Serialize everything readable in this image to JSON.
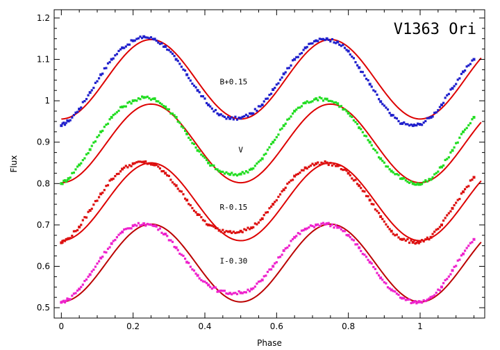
{
  "chart_data": {
    "type": "scatter",
    "title": "V1363 Ori",
    "xlabel": "Phase",
    "ylabel": "Flux",
    "xlim": [
      -0.02,
      1.18
    ],
    "ylim": [
      0.475,
      1.22
    ],
    "xticks": [
      "0",
      "0.2",
      "0.4",
      "0.6",
      "0.8",
      "1"
    ],
    "yticks": [
      "0.5",
      "0.6",
      "0.7",
      "0.8",
      "0.9",
      "1",
      "1.1",
      "1.2"
    ],
    "grid": false,
    "legend": "none",
    "series": [
      {
        "name": "B+0.15",
        "color": "#2020cc",
        "model_color": "#dd0000",
        "label_at": [
          0.48,
          1.04
        ],
        "model": {
          "mean": 1.052,
          "amplitude": 0.096,
          "depth_primary": 0.0,
          "depth_secondary": 0.0
        },
        "points_x": [
          0.0,
          0.02,
          0.05,
          0.08,
          0.11,
          0.14,
          0.17,
          0.2,
          0.23,
          0.26,
          0.29,
          0.32,
          0.35,
          0.38,
          0.41,
          0.44,
          0.47,
          0.5,
          0.53,
          0.56,
          0.59,
          0.62,
          0.65,
          0.68,
          0.71,
          0.74,
          0.77,
          0.8,
          0.83,
          0.86,
          0.89,
          0.92,
          0.95,
          0.98,
          1.0,
          1.03,
          1.06,
          1.09,
          1.12,
          1.15
        ],
        "points_y": [
          0.94,
          0.951,
          0.98,
          1.02,
          1.063,
          1.1,
          1.128,
          1.145,
          1.155,
          1.149,
          1.131,
          1.1,
          1.063,
          1.025,
          0.99,
          0.966,
          0.957,
          0.958,
          0.969,
          0.99,
          1.027,
          1.065,
          1.1,
          1.128,
          1.145,
          1.15,
          1.142,
          1.12,
          1.08,
          1.04,
          0.998,
          0.965,
          0.945,
          0.94,
          0.943,
          0.96,
          0.99,
          1.03,
          1.07,
          1.1
        ]
      },
      {
        "name": "V",
        "color": "#22dd22",
        "model_color": "#dd0000",
        "label_at": [
          0.5,
          0.875
        ],
        "model": {
          "mean": 0.897,
          "amplitude": 0.095
        },
        "points_x": [
          0.0,
          0.02,
          0.05,
          0.08,
          0.11,
          0.14,
          0.17,
          0.2,
          0.23,
          0.26,
          0.29,
          0.32,
          0.35,
          0.38,
          0.41,
          0.44,
          0.47,
          0.5,
          0.53,
          0.56,
          0.59,
          0.62,
          0.65,
          0.68,
          0.71,
          0.74,
          0.77,
          0.8,
          0.83,
          0.86,
          0.89,
          0.92,
          0.95,
          0.98,
          1.0,
          1.03,
          1.06,
          1.09,
          1.12,
          1.15
        ],
        "points_y": [
          0.8,
          0.812,
          0.845,
          0.882,
          0.925,
          0.96,
          0.985,
          1.0,
          1.008,
          1.005,
          0.985,
          0.96,
          0.92,
          0.88,
          0.85,
          0.83,
          0.822,
          0.823,
          0.835,
          0.86,
          0.9,
          0.94,
          0.975,
          0.995,
          1.005,
          1.004,
          0.993,
          0.97,
          0.935,
          0.9,
          0.86,
          0.83,
          0.812,
          0.8,
          0.798,
          0.81,
          0.84,
          0.88,
          0.925,
          0.96
        ]
      },
      {
        "name": "R-0.15",
        "color": "#dd1111",
        "model_color": "#dd0000",
        "label_at": [
          0.48,
          0.737
        ],
        "model": {
          "mean": 0.756,
          "amplitude": 0.094
        },
        "points_x": [
          0.0,
          0.02,
          0.05,
          0.08,
          0.11,
          0.14,
          0.17,
          0.2,
          0.23,
          0.26,
          0.29,
          0.32,
          0.35,
          0.38,
          0.41,
          0.44,
          0.47,
          0.5,
          0.53,
          0.56,
          0.59,
          0.62,
          0.65,
          0.68,
          0.71,
          0.74,
          0.77,
          0.8,
          0.83,
          0.86,
          0.89,
          0.92,
          0.95,
          0.98,
          1.0,
          1.03,
          1.06,
          1.09,
          1.12,
          1.15
        ],
        "points_y": [
          0.657,
          0.667,
          0.695,
          0.735,
          0.775,
          0.81,
          0.835,
          0.848,
          0.852,
          0.845,
          0.825,
          0.795,
          0.76,
          0.725,
          0.7,
          0.687,
          0.684,
          0.685,
          0.693,
          0.715,
          0.75,
          0.785,
          0.818,
          0.838,
          0.848,
          0.85,
          0.843,
          0.825,
          0.795,
          0.76,
          0.72,
          0.685,
          0.665,
          0.658,
          0.66,
          0.67,
          0.7,
          0.74,
          0.78,
          0.815
        ]
      },
      {
        "name": "I-0.30",
        "color": "#ee22cc",
        "model_color": "#bb0000",
        "label_at": [
          0.48,
          0.607
        ],
        "model": {
          "mean": 0.608,
          "amplitude": 0.094
        },
        "points_x": [
          0.0,
          0.02,
          0.05,
          0.08,
          0.11,
          0.14,
          0.17,
          0.2,
          0.23,
          0.26,
          0.29,
          0.32,
          0.35,
          0.38,
          0.41,
          0.44,
          0.47,
          0.5,
          0.53,
          0.56,
          0.59,
          0.62,
          0.65,
          0.68,
          0.71,
          0.74,
          0.77,
          0.8,
          0.83,
          0.86,
          0.89,
          0.92,
          0.95,
          0.98,
          1.0,
          1.03,
          1.06,
          1.09,
          1.12,
          1.15
        ],
        "points_y": [
          0.513,
          0.52,
          0.545,
          0.58,
          0.62,
          0.655,
          0.683,
          0.698,
          0.703,
          0.698,
          0.678,
          0.645,
          0.61,
          0.578,
          0.555,
          0.54,
          0.535,
          0.536,
          0.545,
          0.567,
          0.6,
          0.638,
          0.67,
          0.69,
          0.7,
          0.703,
          0.694,
          0.675,
          0.645,
          0.61,
          0.572,
          0.543,
          0.523,
          0.513,
          0.514,
          0.525,
          0.55,
          0.59,
          0.63,
          0.665
        ]
      }
    ]
  }
}
